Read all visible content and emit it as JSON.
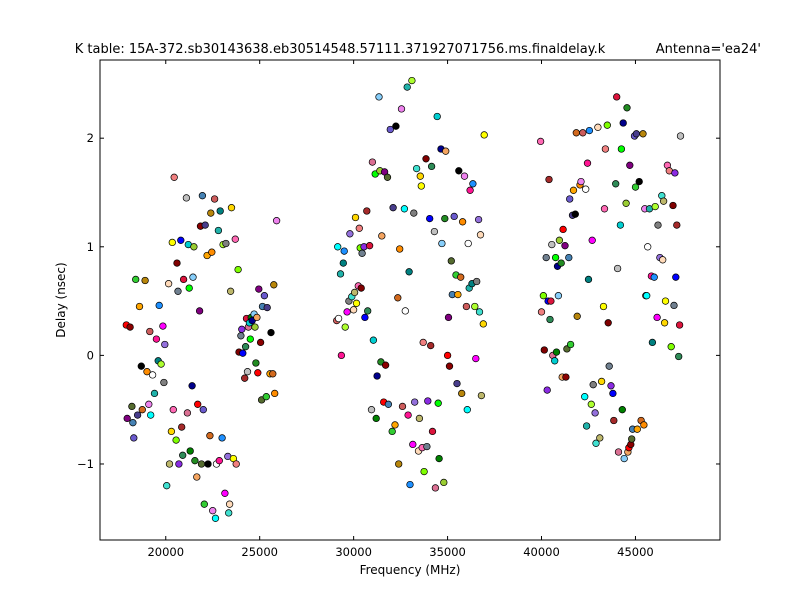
{
  "chart_data": {
    "type": "scatter",
    "title": "K table: 15A-372.sb30143638.eb30514548.57111.371927071756.ms.finaldelay.k",
    "title_right": "Antenna='ea24'",
    "xlabel": "Frequency (MHz)",
    "ylabel": "Delay (nsec)",
    "xlim": [
      16500,
      49500
    ],
    "ylim": [
      -1.7,
      2.72
    ],
    "xticks": [
      20000,
      25000,
      30000,
      35000,
      40000,
      45000
    ],
    "xtick_labels": [
      "20000",
      "25000",
      "30000",
      "35000",
      "40000",
      "45000"
    ],
    "yticks": [
      -1,
      0,
      1,
      2
    ],
    "ytick_labels": [
      "−1",
      "0",
      "1",
      "2"
    ],
    "grid": false,
    "legend": "none",
    "palette": [
      "#ff0000",
      "#00ff00",
      "#0000ff",
      "#ffff00",
      "#ff00ff",
      "#00ffff",
      "#ffa500",
      "#800080",
      "#008000",
      "#a52a2a",
      "#ff69b4",
      "#808080",
      "#ffffff",
      "#000000",
      "#8b0000",
      "#00008b",
      "#2e8b57",
      "#f08080",
      "#9370db",
      "#20b2aa",
      "#d2691e",
      "#556b2f",
      "#87cefa",
      "#dc143c",
      "#7fff00",
      "#40e0d0",
      "#ff1493",
      "#b8860b",
      "#4682b4",
      "#9acd32",
      "#c0c0c0",
      "#800000",
      "#ffdab9",
      "#008080",
      "#ff8c00",
      "#6a5acd",
      "#228b22",
      "#db7093",
      "#708090",
      "#bdb76b",
      "#1e90ff",
      "#ee82ee",
      "#32cd32",
      "#f4a460",
      "#00ced1",
      "#8a2be2",
      "#ffd700",
      "#adff2f",
      "#cd5c5c",
      "#483d8b"
    ],
    "points": [
      [
        17900,
        0.28
      ],
      [
        17950,
        -0.58
      ],
      [
        18100,
        0.26
      ],
      [
        18200,
        -0.47
      ],
      [
        18250,
        -0.62
      ],
      [
        18300,
        -0.76
      ],
      [
        18400,
        0.7
      ],
      [
        18500,
        -0.55
      ],
      [
        18600,
        0.45
      ],
      [
        18700,
        -0.1
      ],
      [
        18750,
        -0.5
      ],
      [
        18900,
        0.69
      ],
      [
        19000,
        -0.15
      ],
      [
        19100,
        -0.45
      ],
      [
        19150,
        0.22
      ],
      [
        19200,
        -0.55
      ],
      [
        19300,
        -0.18
      ],
      [
        19400,
        -0.35
      ],
      [
        19500,
        0.15
      ],
      [
        19600,
        -0.05
      ],
      [
        19650,
        0.46
      ],
      [
        19750,
        -0.08
      ],
      [
        19850,
        0.27
      ],
      [
        19900,
        -0.25
      ],
      [
        19950,
        0.1
      ],
      [
        20050,
        -1.2
      ],
      [
        20150,
        0.66
      ],
      [
        20200,
        -1.0
      ],
      [
        20300,
        -0.7
      ],
      [
        20350,
        1.04
      ],
      [
        20400,
        -0.5
      ],
      [
        20450,
        1.64
      ],
      [
        20550,
        -0.78
      ],
      [
        20600,
        0.85
      ],
      [
        20650,
        0.59
      ],
      [
        20700,
        -1.0
      ],
      [
        20800,
        1.06
      ],
      [
        20850,
        -0.66
      ],
      [
        20900,
        -0.92
      ],
      [
        20950,
        0.7
      ],
      [
        21100,
        1.45
      ],
      [
        21150,
        -0.53
      ],
      [
        21200,
        1.02
      ],
      [
        21250,
        0.62
      ],
      [
        21300,
        -0.88
      ],
      [
        21400,
        -0.28
      ],
      [
        21450,
        0.72
      ],
      [
        21500,
        1.0
      ],
      [
        21550,
        -0.97
      ],
      [
        21650,
        -1.12
      ],
      [
        21700,
        -0.45
      ],
      [
        21800,
        0.41
      ],
      [
        21850,
        1.19
      ],
      [
        21900,
        -1.0
      ],
      [
        21950,
        1.47
      ],
      [
        22000,
        -0.5
      ],
      [
        22050,
        -1.37
      ],
      [
        22100,
        1.2
      ],
      [
        22200,
        0.92
      ],
      [
        22250,
        -1.0
      ],
      [
        22350,
        -0.74
      ],
      [
        22400,
        1.31
      ],
      [
        22450,
        0.95
      ],
      [
        22500,
        -1.43
      ],
      [
        22600,
        1.44
      ],
      [
        22650,
        -1.5
      ],
      [
        22700,
        -1.0
      ],
      [
        22800,
        1.15
      ],
      [
        22850,
        -0.97
      ],
      [
        22900,
        1.33
      ],
      [
        23000,
        -0.76
      ],
      [
        23050,
        1.02
      ],
      [
        23150,
        -1.27
      ],
      [
        23200,
        1.03
      ],
      [
        23300,
        -0.93
      ],
      [
        23350,
        -1.45
      ],
      [
        23400,
        -1.37
      ],
      [
        23450,
        0.59
      ],
      [
        23500,
        1.36
      ],
      [
        23600,
        -0.95
      ],
      [
        23700,
        1.07
      ],
      [
        23750,
        -1.0
      ],
      [
        23850,
        0.79
      ],
      [
        23900,
        0.03
      ],
      [
        24000,
        0.18
      ],
      [
        24050,
        0.24
      ],
      [
        24100,
        0.02
      ],
      [
        24200,
        -0.21
      ],
      [
        24250,
        0.08
      ],
      [
        24300,
        0.34
      ],
      [
        24350,
        -0.15
      ],
      [
        24400,
        0.26
      ],
      [
        24450,
        0.3
      ],
      [
        24500,
        0.15
      ],
      [
        24550,
        0.35
      ],
      [
        24600,
        0.32
      ],
      [
        24700,
        0.38
      ],
      [
        24750,
        0.26
      ],
      [
        24800,
        -0.07
      ],
      [
        24850,
        0.35
      ],
      [
        24900,
        -0.16
      ],
      [
        24950,
        0.61
      ],
      [
        25050,
        0.12
      ],
      [
        25100,
        -0.41
      ],
      [
        25150,
        0.45
      ],
      [
        25250,
        0.55
      ],
      [
        25350,
        -0.38
      ],
      [
        25400,
        0.44
      ],
      [
        25550,
        -0.17
      ],
      [
        25600,
        0.21
      ],
      [
        25700,
        -0.17
      ],
      [
        25750,
        0.65
      ],
      [
        25800,
        -0.35
      ],
      [
        25900,
        1.24
      ],
      [
        29100,
        0.32
      ],
      [
        29150,
        1.0
      ],
      [
        29200,
        0.34
      ],
      [
        29300,
        0.75
      ],
      [
        29350,
        0.0
      ],
      [
        29450,
        0.85
      ],
      [
        29500,
        0.96
      ],
      [
        29550,
        0.26
      ],
      [
        29650,
        0.4
      ],
      [
        29750,
        0.5
      ],
      [
        29800,
        1.12
      ],
      [
        29900,
        0.54
      ],
      [
        30000,
        0.42
      ],
      [
        30050,
        0.58
      ],
      [
        30100,
        1.27
      ],
      [
        30150,
        0.48
      ],
      [
        30250,
        0.64
      ],
      [
        30300,
        1.17
      ],
      [
        30350,
        0.99
      ],
      [
        30400,
        0.62
      ],
      [
        30450,
        0.94
      ],
      [
        30550,
        1.0
      ],
      [
        30600,
        0.35
      ],
      [
        30700,
        1.33
      ],
      [
        30750,
        0.41
      ],
      [
        30850,
        1.01
      ],
      [
        30950,
        -0.5
      ],
      [
        31000,
        1.78
      ],
      [
        31050,
        0.14
      ],
      [
        31150,
        1.67
      ],
      [
        31200,
        -0.58
      ],
      [
        31250,
        -0.19
      ],
      [
        31350,
        2.38
      ],
      [
        31400,
        1.7
      ],
      [
        31450,
        -0.06
      ],
      [
        31500,
        1.1
      ],
      [
        31600,
        -0.43
      ],
      [
        31650,
        1.69
      ],
      [
        31700,
        -0.09
      ],
      [
        31800,
        1.64
      ],
      [
        31850,
        -0.45
      ],
      [
        31950,
        2.08
      ],
      [
        32050,
        -0.7
      ],
      [
        32100,
        1.36
      ],
      [
        32200,
        -0.64
      ],
      [
        32250,
        2.11
      ],
      [
        32350,
        0.53
      ],
      [
        32400,
        -1.0
      ],
      [
        32450,
        0.98
      ],
      [
        32550,
        2.27
      ],
      [
        32600,
        -0.47
      ],
      [
        32700,
        1.35
      ],
      [
        32750,
        0.41
      ],
      [
        32850,
        2.47
      ],
      [
        32900,
        -0.55
      ],
      [
        32950,
        0.77
      ],
      [
        33000,
        -1.19
      ],
      [
        33100,
        2.53
      ],
      [
        33150,
        -0.82
      ],
      [
        33200,
        1.31
      ],
      [
        33250,
        -0.43
      ],
      [
        33350,
        1.72
      ],
      [
        33450,
        -0.88
      ],
      [
        33500,
        -0.58
      ],
      [
        33550,
        1.65
      ],
      [
        33600,
        1.56
      ],
      [
        33650,
        -0.85
      ],
      [
        33700,
        0.12
      ],
      [
        33750,
        -1.07
      ],
      [
        33850,
        1.81
      ],
      [
        33900,
        -0.84
      ],
      [
        33950,
        -0.42
      ],
      [
        34050,
        1.26
      ],
      [
        34100,
        0.09
      ],
      [
        34150,
        1.74
      ],
      [
        34200,
        -0.7
      ],
      [
        34300,
        1.14
      ],
      [
        34350,
        -1.22
      ],
      [
        34450,
        2.2
      ],
      [
        34500,
        -0.44
      ],
      [
        34550,
        -0.95
      ],
      [
        34650,
        1.9
      ],
      [
        34700,
        1.03
      ],
      [
        34800,
        -1.17
      ],
      [
        34850,
        1.26
      ],
      [
        34900,
        1.88
      ],
      [
        35000,
        0.0
      ],
      [
        35050,
        0.35
      ],
      [
        35100,
        -0.1
      ],
      [
        35200,
        0.87
      ],
      [
        35250,
        0.56
      ],
      [
        35350,
        1.28
      ],
      [
        35450,
        0.74
      ],
      [
        35500,
        -0.26
      ],
      [
        35550,
        0.56
      ],
      [
        35600,
        1.7
      ],
      [
        35700,
        0.72
      ],
      [
        35750,
        -0.35
      ],
      [
        35800,
        1.23
      ],
      [
        35900,
        1.65
      ],
      [
        36000,
        0.45
      ],
      [
        36050,
        -0.5
      ],
      [
        36100,
        1.03
      ],
      [
        36150,
        0.62
      ],
      [
        36200,
        1.52
      ],
      [
        36300,
        0.66
      ],
      [
        36350,
        1.58
      ],
      [
        36450,
        0.45
      ],
      [
        36500,
        -0.03
      ],
      [
        36550,
        0.68
      ],
      [
        36650,
        1.25
      ],
      [
        36700,
        0.4
      ],
      [
        36750,
        1.11
      ],
      [
        36800,
        -0.37
      ],
      [
        36900,
        0.29
      ],
      [
        36950,
        2.03
      ],
      [
        39950,
        1.97
      ],
      [
        40000,
        0.4
      ],
      [
        40100,
        0.55
      ],
      [
        40150,
        0.05
      ],
      [
        40250,
        0.9
      ],
      [
        40300,
        -0.32
      ],
      [
        40350,
        0.5
      ],
      [
        40400,
        1.62
      ],
      [
        40450,
        0.33
      ],
      [
        40500,
        0.5
      ],
      [
        40550,
        1.02
      ],
      [
        40600,
        0.0
      ],
      [
        40700,
        -0.05
      ],
      [
        40750,
        0.9
      ],
      [
        40800,
        0.03
      ],
      [
        40850,
        0.82
      ],
      [
        40900,
        0.55
      ],
      [
        40950,
        1.06
      ],
      [
        41050,
        0.85
      ],
      [
        41100,
        -0.2
      ],
      [
        41150,
        1.16
      ],
      [
        41250,
        1.01
      ],
      [
        41300,
        -0.2
      ],
      [
        41350,
        0.06
      ],
      [
        41450,
        0.9
      ],
      [
        41500,
        1.44
      ],
      [
        41550,
        0.1
      ],
      [
        41650,
        1.29
      ],
      [
        41700,
        1.52
      ],
      [
        41800,
        1.3
      ],
      [
        41850,
        2.05
      ],
      [
        41900,
        0.36
      ],
      [
        42050,
        1.57
      ],
      [
        42100,
        1.6
      ],
      [
        42200,
        2.05
      ],
      [
        42300,
        -0.38
      ],
      [
        42350,
        1.53
      ],
      [
        42400,
        -0.65
      ],
      [
        42450,
        1.77
      ],
      [
        42500,
        0.7
      ],
      [
        42550,
        2.07
      ],
      [
        42650,
        -0.45
      ],
      [
        42700,
        1.06
      ],
      [
        42750,
        -0.27
      ],
      [
        42850,
        -0.53
      ],
      [
        42900,
        -0.81
      ],
      [
        43000,
        2.1
      ],
      [
        43100,
        -0.76
      ],
      [
        43200,
        -0.24
      ],
      [
        43300,
        0.45
      ],
      [
        43350,
        1.35
      ],
      [
        43400,
        1.9
      ],
      [
        43500,
        2.12
      ],
      [
        43550,
        0.3
      ],
      [
        43600,
        -0.1
      ],
      [
        43700,
        -0.28
      ],
      [
        43800,
        -0.35
      ],
      [
        43850,
        -0.6
      ],
      [
        43950,
        1.58
      ],
      [
        44000,
        2.38
      ],
      [
        44050,
        0.8
      ],
      [
        44100,
        -0.89
      ],
      [
        44200,
        1.2
      ],
      [
        44250,
        1.9
      ],
      [
        44300,
        -0.5
      ],
      [
        44350,
        2.14
      ],
      [
        44400,
        -0.95
      ],
      [
        44500,
        1.4
      ],
      [
        44550,
        2.28
      ],
      [
        44600,
        -0.89
      ],
      [
        44650,
        -0.85
      ],
      [
        44700,
        1.75
      ],
      [
        44750,
        -0.82
      ],
      [
        44800,
        -0.77
      ],
      [
        44850,
        -0.68
      ],
      [
        44950,
        2.02
      ],
      [
        45000,
        1.55
      ],
      [
        45050,
        2.04
      ],
      [
        45100,
        -0.68
      ],
      [
        45200,
        1.6
      ],
      [
        45300,
        -0.6
      ],
      [
        45400,
        2.04
      ],
      [
        45450,
        -0.64
      ],
      [
        45500,
        1.35
      ],
      [
        45550,
        0.55
      ],
      [
        45600,
        0.55
      ],
      [
        45650,
        1.0
      ],
      [
        45750,
        1.35
      ],
      [
        45850,
        0.73
      ],
      [
        45900,
        0.12
      ],
      [
        46000,
        0.72
      ],
      [
        46050,
        1.37
      ],
      [
        46150,
        0.35
      ],
      [
        46200,
        1.2
      ],
      [
        46300,
        0.9
      ],
      [
        46400,
        1.47
      ],
      [
        46450,
        0.88
      ],
      [
        46500,
        1.42
      ],
      [
        46550,
        0.3
      ],
      [
        46600,
        0.5
      ],
      [
        46700,
        1.75
      ],
      [
        46800,
        1.7
      ],
      [
        46900,
        0.08
      ],
      [
        47000,
        1.38
      ],
      [
        47050,
        0.46
      ],
      [
        47100,
        1.68
      ],
      [
        47150,
        0.72
      ],
      [
        47200,
        1.2
      ],
      [
        47300,
        -0.01
      ],
      [
        47350,
        0.28
      ],
      [
        47400,
        2.02
      ]
    ]
  }
}
